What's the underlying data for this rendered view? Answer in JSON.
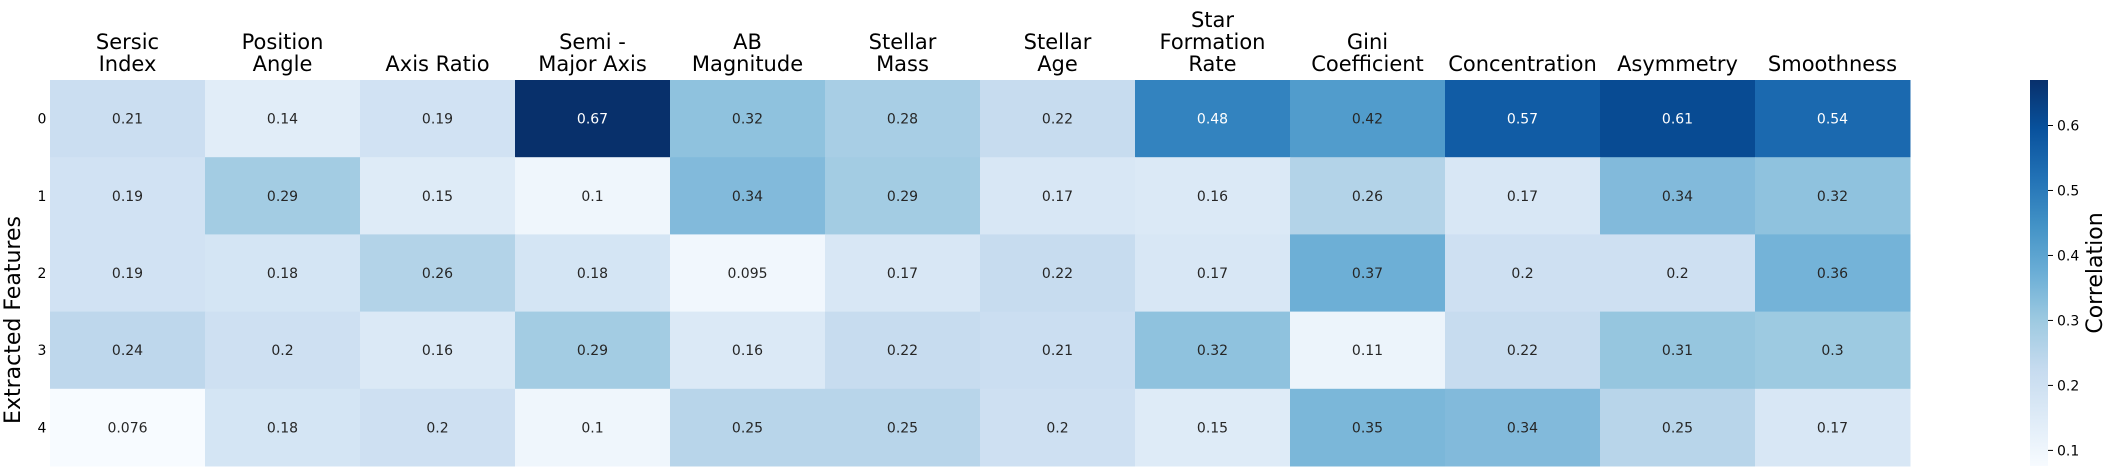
{
  "chart_data": {
    "type": "heatmap",
    "title": "",
    "xlabel": "",
    "ylabel": "Extracted Features",
    "columns": [
      [
        "Sersic",
        "Index"
      ],
      [
        "Position",
        "Angle"
      ],
      [
        "Axis Ratio"
      ],
      [
        "Semi -",
        "Major Axis"
      ],
      [
        "AB",
        "Magnitude"
      ],
      [
        "Stellar",
        "Mass"
      ],
      [
        "Stellar",
        "Age"
      ],
      [
        "Star",
        "Formation",
        "Rate"
      ],
      [
        "Gini",
        "Coefficient"
      ],
      [
        "Concentration"
      ],
      [
        "Asymmetry"
      ],
      [
        "Smoothness"
      ]
    ],
    "rows": [
      "0",
      "1",
      "2",
      "3",
      "4"
    ],
    "values": [
      [
        0.21,
        0.14,
        0.19,
        0.67,
        0.32,
        0.28,
        0.22,
        0.48,
        0.42,
        0.57,
        0.61,
        0.54
      ],
      [
        0.19,
        0.29,
        0.15,
        0.1,
        0.34,
        0.29,
        0.17,
        0.16,
        0.26,
        0.17,
        0.34,
        0.32
      ],
      [
        0.19,
        0.18,
        0.26,
        0.18,
        0.095,
        0.17,
        0.22,
        0.17,
        0.37,
        0.2,
        0.2,
        0.36
      ],
      [
        0.24,
        0.2,
        0.16,
        0.29,
        0.16,
        0.22,
        0.21,
        0.32,
        0.11,
        0.22,
        0.31,
        0.3
      ],
      [
        0.076,
        0.18,
        0.2,
        0.1,
        0.25,
        0.25,
        0.2,
        0.15,
        0.35,
        0.34,
        0.25,
        0.17
      ]
    ],
    "colormap": "Blues",
    "vmin": 0.076,
    "vmax": 0.67,
    "colorbar": {
      "label": "Correlation",
      "ticks": [
        "0.1",
        "0.2",
        "0.3",
        "0.4",
        "0.5",
        "0.6"
      ]
    }
  }
}
